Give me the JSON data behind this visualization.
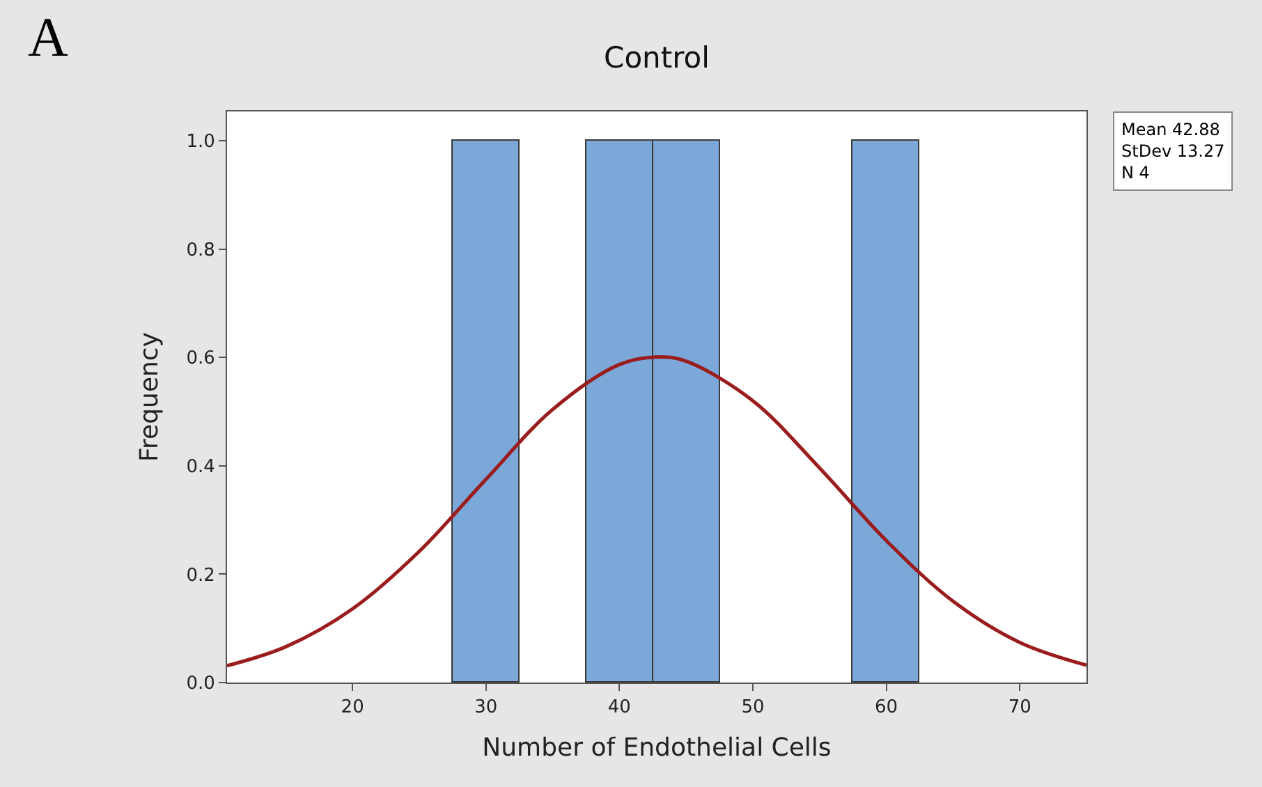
{
  "chart_data": {
    "type": "histogram",
    "title": "Control",
    "xlabel": "Number of Endothelial Cells",
    "ylabel": "Frequency",
    "series": [
      {
        "type": "histogram",
        "bins": [
          27.5,
          32.5,
          37.5,
          42.5,
          47.5,
          52.5,
          57.5,
          62.5
        ],
        "values": [
          1,
          0,
          1,
          1,
          0,
          0,
          1
        ],
        "color": "#7ba7d9"
      },
      {
        "type": "line",
        "x": [
          10.6,
          15,
          20,
          25,
          30,
          35,
          40,
          42.88,
          45,
          50,
          55,
          60,
          65,
          70,
          75
        ],
        "values": [
          0.031,
          0.066,
          0.136,
          0.242,
          0.375,
          0.504,
          0.587,
          0.601,
          0.593,
          0.52,
          0.396,
          0.262,
          0.15,
          0.074,
          0.032
        ],
        "color": "#9b1c1c"
      }
    ],
    "xlim": [
      10.6,
      75
    ],
    "xticks": [
      20,
      30,
      40,
      50,
      60,
      70
    ],
    "ylim": [
      0,
      1.054
    ],
    "yticks": [
      {
        "value": 0,
        "label": "0.0"
      },
      {
        "value": 0.2,
        "label": "0.2"
      },
      {
        "value": 0.4,
        "label": "0.4"
      },
      {
        "value": 0.6,
        "label": "0.6"
      },
      {
        "value": 0.8,
        "label": "0.8"
      },
      {
        "value": 1,
        "label": "1.0"
      }
    ],
    "marker": "none",
    "line_style": "solid",
    "annotations": [
      "A",
      "Mean 42.88",
      "StDev 13.27",
      "N 4"
    ]
  }
}
